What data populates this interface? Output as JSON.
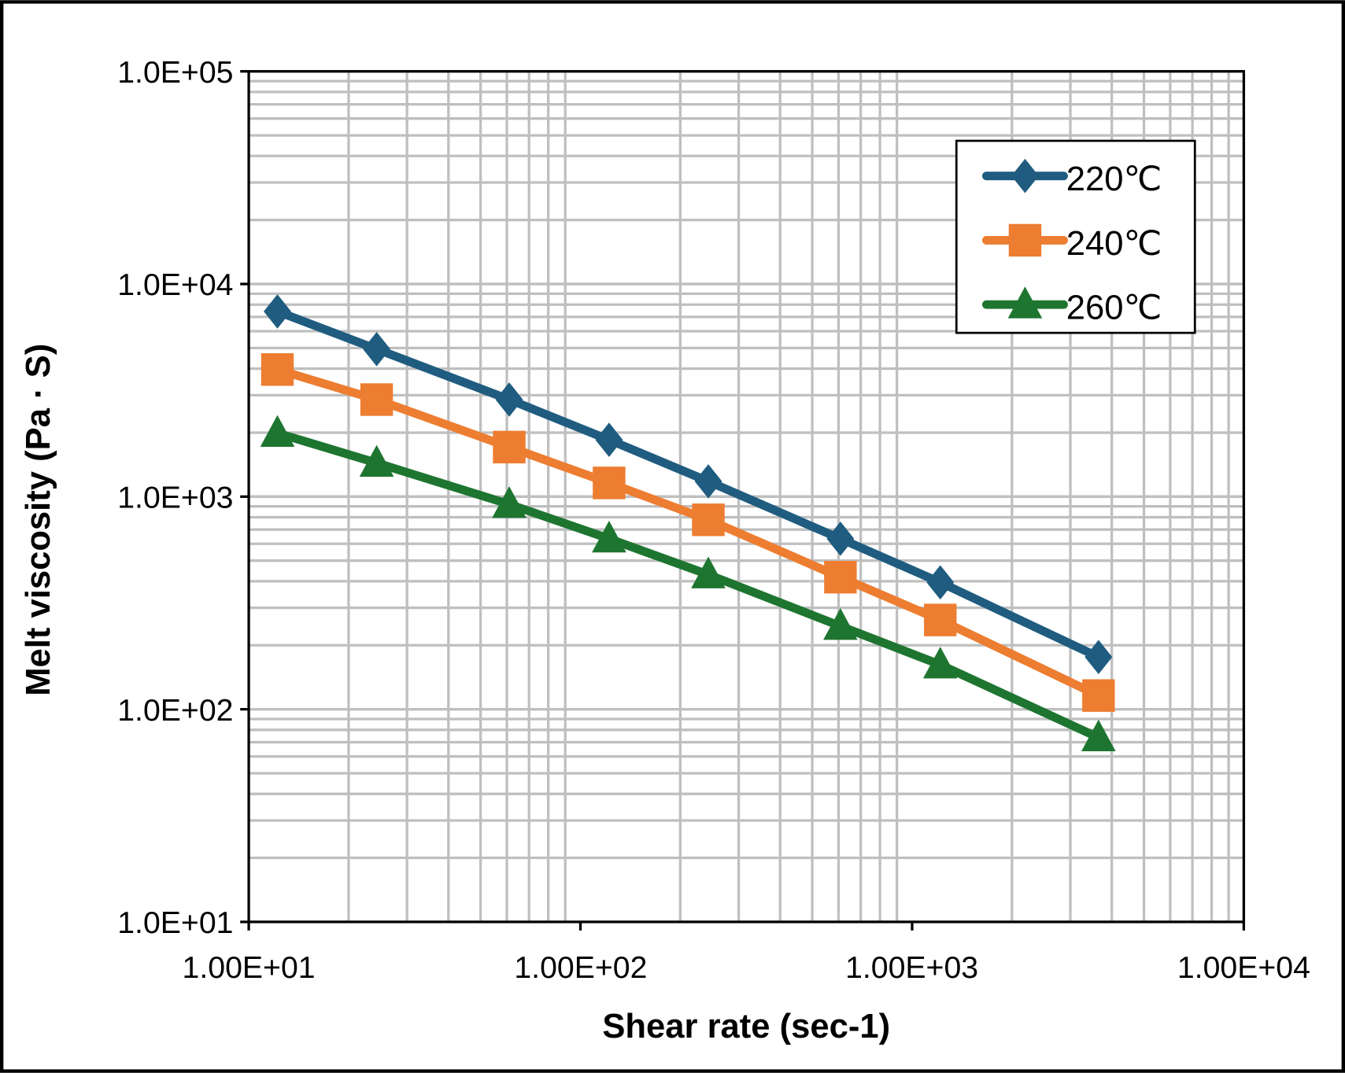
{
  "chart_data": {
    "type": "line",
    "xlabel": "Shear rate (sec-1)",
    "ylabel": "Melt viscosity (Pa · S)",
    "xscale": "log",
    "yscale": "log",
    "xlim": [
      10,
      10000
    ],
    "ylim": [
      10,
      100000
    ],
    "x_tick_labels": [
      "1.00E+01",
      "1.00E+02",
      "1.00E+03",
      "1.00E+04"
    ],
    "y_tick_labels": [
      "1.0E+01",
      "1.0E+02",
      "1.0E+03",
      "1.0E+04",
      "1.0E+05"
    ],
    "grid": true,
    "legend_position": "top-right",
    "x": [
      12.2,
      24.3,
      61,
      122,
      243,
      608,
      1216,
      3648
    ],
    "series": [
      {
        "name": "220℃",
        "color": "#1F5C80",
        "marker": "diamond",
        "values": [
          7430,
          4940,
          2860,
          1850,
          1180,
          634,
          395,
          176
        ]
      },
      {
        "name": "240℃",
        "color": "#ED7D31",
        "marker": "square",
        "values": [
          3960,
          2860,
          1710,
          1160,
          778,
          418,
          263,
          116
        ]
      },
      {
        "name": "260℃",
        "color": "#1E7530",
        "marker": "triangle",
        "values": [
          1990,
          1440,
          921,
          634,
          430,
          246,
          162,
          73.6
        ]
      }
    ]
  }
}
